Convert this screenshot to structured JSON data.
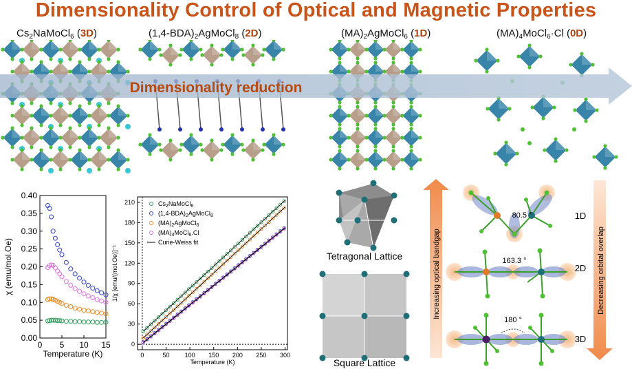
{
  "title": "Dimensionality Control of Optical and Magnetic Properties",
  "structures": [
    {
      "formula_parts": [
        "Cs",
        "2",
        "NaMoCl",
        "6",
        " ("
      ],
      "dim": "3D"
    },
    {
      "formula_parts": [
        "(1,4-BDA)",
        "2",
        "AgMoCl",
        "8",
        " ("
      ],
      "dim": "2D"
    },
    {
      "formula_parts": [
        "(MA)",
        "2",
        "AgMoCl",
        "6",
        " ("
      ],
      "dim": "1D"
    },
    {
      "formula_parts": [
        "(MA)",
        "4",
        "MoCl",
        "6",
        "·Cl ("
      ],
      "dim": "0D"
    }
  ],
  "arrow_label": "Dimensionality reduction",
  "lattices": {
    "tetragonal": "Tetragonal Lattice",
    "square": "Square Lattice"
  },
  "bandgap_label": "Increasing optical bandgap",
  "orbital_label": "Decreasing orbital overlap",
  "bonds": [
    {
      "angle": "80.5 °",
      "dim": "1D"
    },
    {
      "angle": "163.3 °",
      "dim": "2D"
    },
    {
      "angle": "180 °",
      "dim": "3D"
    }
  ],
  "colors": {
    "title": "#c8541a",
    "dim": "#a8430f",
    "octahedron": "#2f7fa6",
    "silver_oct": "#b59a86",
    "cl": "#4fc034",
    "arrow": "#f0a070"
  },
  "chart_data": [
    {
      "type": "scatter",
      "ylabel": "χ (emu/mol.Oe)",
      "xlabel": "Temperature (K)",
      "xlim": [
        0,
        15
      ],
      "ylim": [
        0,
        0.4
      ],
      "xticks": [
        "0",
        "5",
        "10",
        "15"
      ],
      "yticks": [
        "0.00",
        "0.05",
        "0.10",
        "0.15",
        "0.20",
        "0.25",
        "0.30",
        "0.35",
        "0.40"
      ],
      "series": [
        {
          "color": "#2e9e5a",
          "x": [
            1.8,
            2.2,
            2.6,
            3,
            3.5,
            4,
            4.5,
            5,
            6,
            7,
            8,
            9,
            10,
            11,
            12,
            13,
            14,
            15
          ],
          "y": [
            0.048,
            0.049,
            0.05,
            0.05,
            0.05,
            0.049,
            0.049,
            0.048,
            0.047,
            0.047,
            0.046,
            0.046,
            0.045,
            0.045,
            0.045,
            0.044,
            0.044,
            0.044
          ]
        },
        {
          "color": "#ef8a22",
          "x": [
            1.8,
            2.2,
            2.6,
            3,
            3.5,
            4,
            4.5,
            5,
            6,
            7,
            8,
            9,
            10,
            11,
            12,
            13,
            14,
            15
          ],
          "y": [
            0.108,
            0.11,
            0.11,
            0.109,
            0.106,
            0.103,
            0.1,
            0.097,
            0.092,
            0.088,
            0.084,
            0.081,
            0.078,
            0.076,
            0.074,
            0.072,
            0.07,
            0.068
          ]
        },
        {
          "color": "#e070e0",
          "x": [
            1.8,
            2.2,
            2.6,
            3,
            3.5,
            4,
            4.5,
            5,
            6,
            7,
            8,
            9,
            10,
            11,
            12,
            13,
            14,
            15
          ],
          "y": [
            0.198,
            0.203,
            0.205,
            0.204,
            0.197,
            0.188,
            0.18,
            0.172,
            0.159,
            0.148,
            0.139,
            0.131,
            0.124,
            0.118,
            0.113,
            0.108,
            0.104,
            0.1
          ]
        },
        {
          "color": "#2e3fc8",
          "x": [
            1.8,
            2.2,
            2.6,
            3,
            3.5,
            4,
            4.5,
            5,
            6,
            7,
            8,
            9,
            10,
            11,
            12,
            13,
            14,
            15
          ],
          "y": [
            0.372,
            0.364,
            0.34,
            0.3,
            0.28,
            0.262,
            0.247,
            0.234,
            0.212,
            0.194,
            0.18,
            0.168,
            0.157,
            0.148,
            0.14,
            0.133,
            0.127,
            0.121
          ]
        }
      ]
    },
    {
      "type": "scatter",
      "ylabel": "1/χ [emu/(mol.Oe)]⁻¹",
      "xlabel": "Temperature (K)",
      "xlim": [
        -10,
        305
      ],
      "ylim": [
        -8,
        218
      ],
      "xticks": [
        "0",
        "50",
        "100",
        "150",
        "200",
        "250",
        "300"
      ],
      "yticks": [
        "0",
        "30",
        "60",
        "90",
        "120",
        "150",
        "180",
        "210"
      ],
      "fit_label": "Curie-Weiss fit",
      "series": [
        {
          "name_parts": [
            "Cs",
            "2",
            "NaMoCl",
            "6",
            ""
          ],
          "color": "#2e9e5a",
          "intercept": 18,
          "slope": 0.65
        },
        {
          "name_parts": [
            "(1,4-BDA)",
            "2",
            "AgMoCl",
            "8",
            ""
          ],
          "color": "#2e3fc8",
          "intercept": 2,
          "slope": 0.57
        },
        {
          "name_parts": [
            "(MA)",
            "2",
            "AgMoCl",
            "6",
            ""
          ],
          "color": "#ef8a22",
          "intercept": 8,
          "slope": 0.65
        },
        {
          "name_parts": [
            "(MA)",
            "4",
            "MoCl",
            "6",
            ".Cl"
          ],
          "color": "#e070e0",
          "intercept": 1,
          "slope": 0.57
        }
      ]
    }
  ]
}
